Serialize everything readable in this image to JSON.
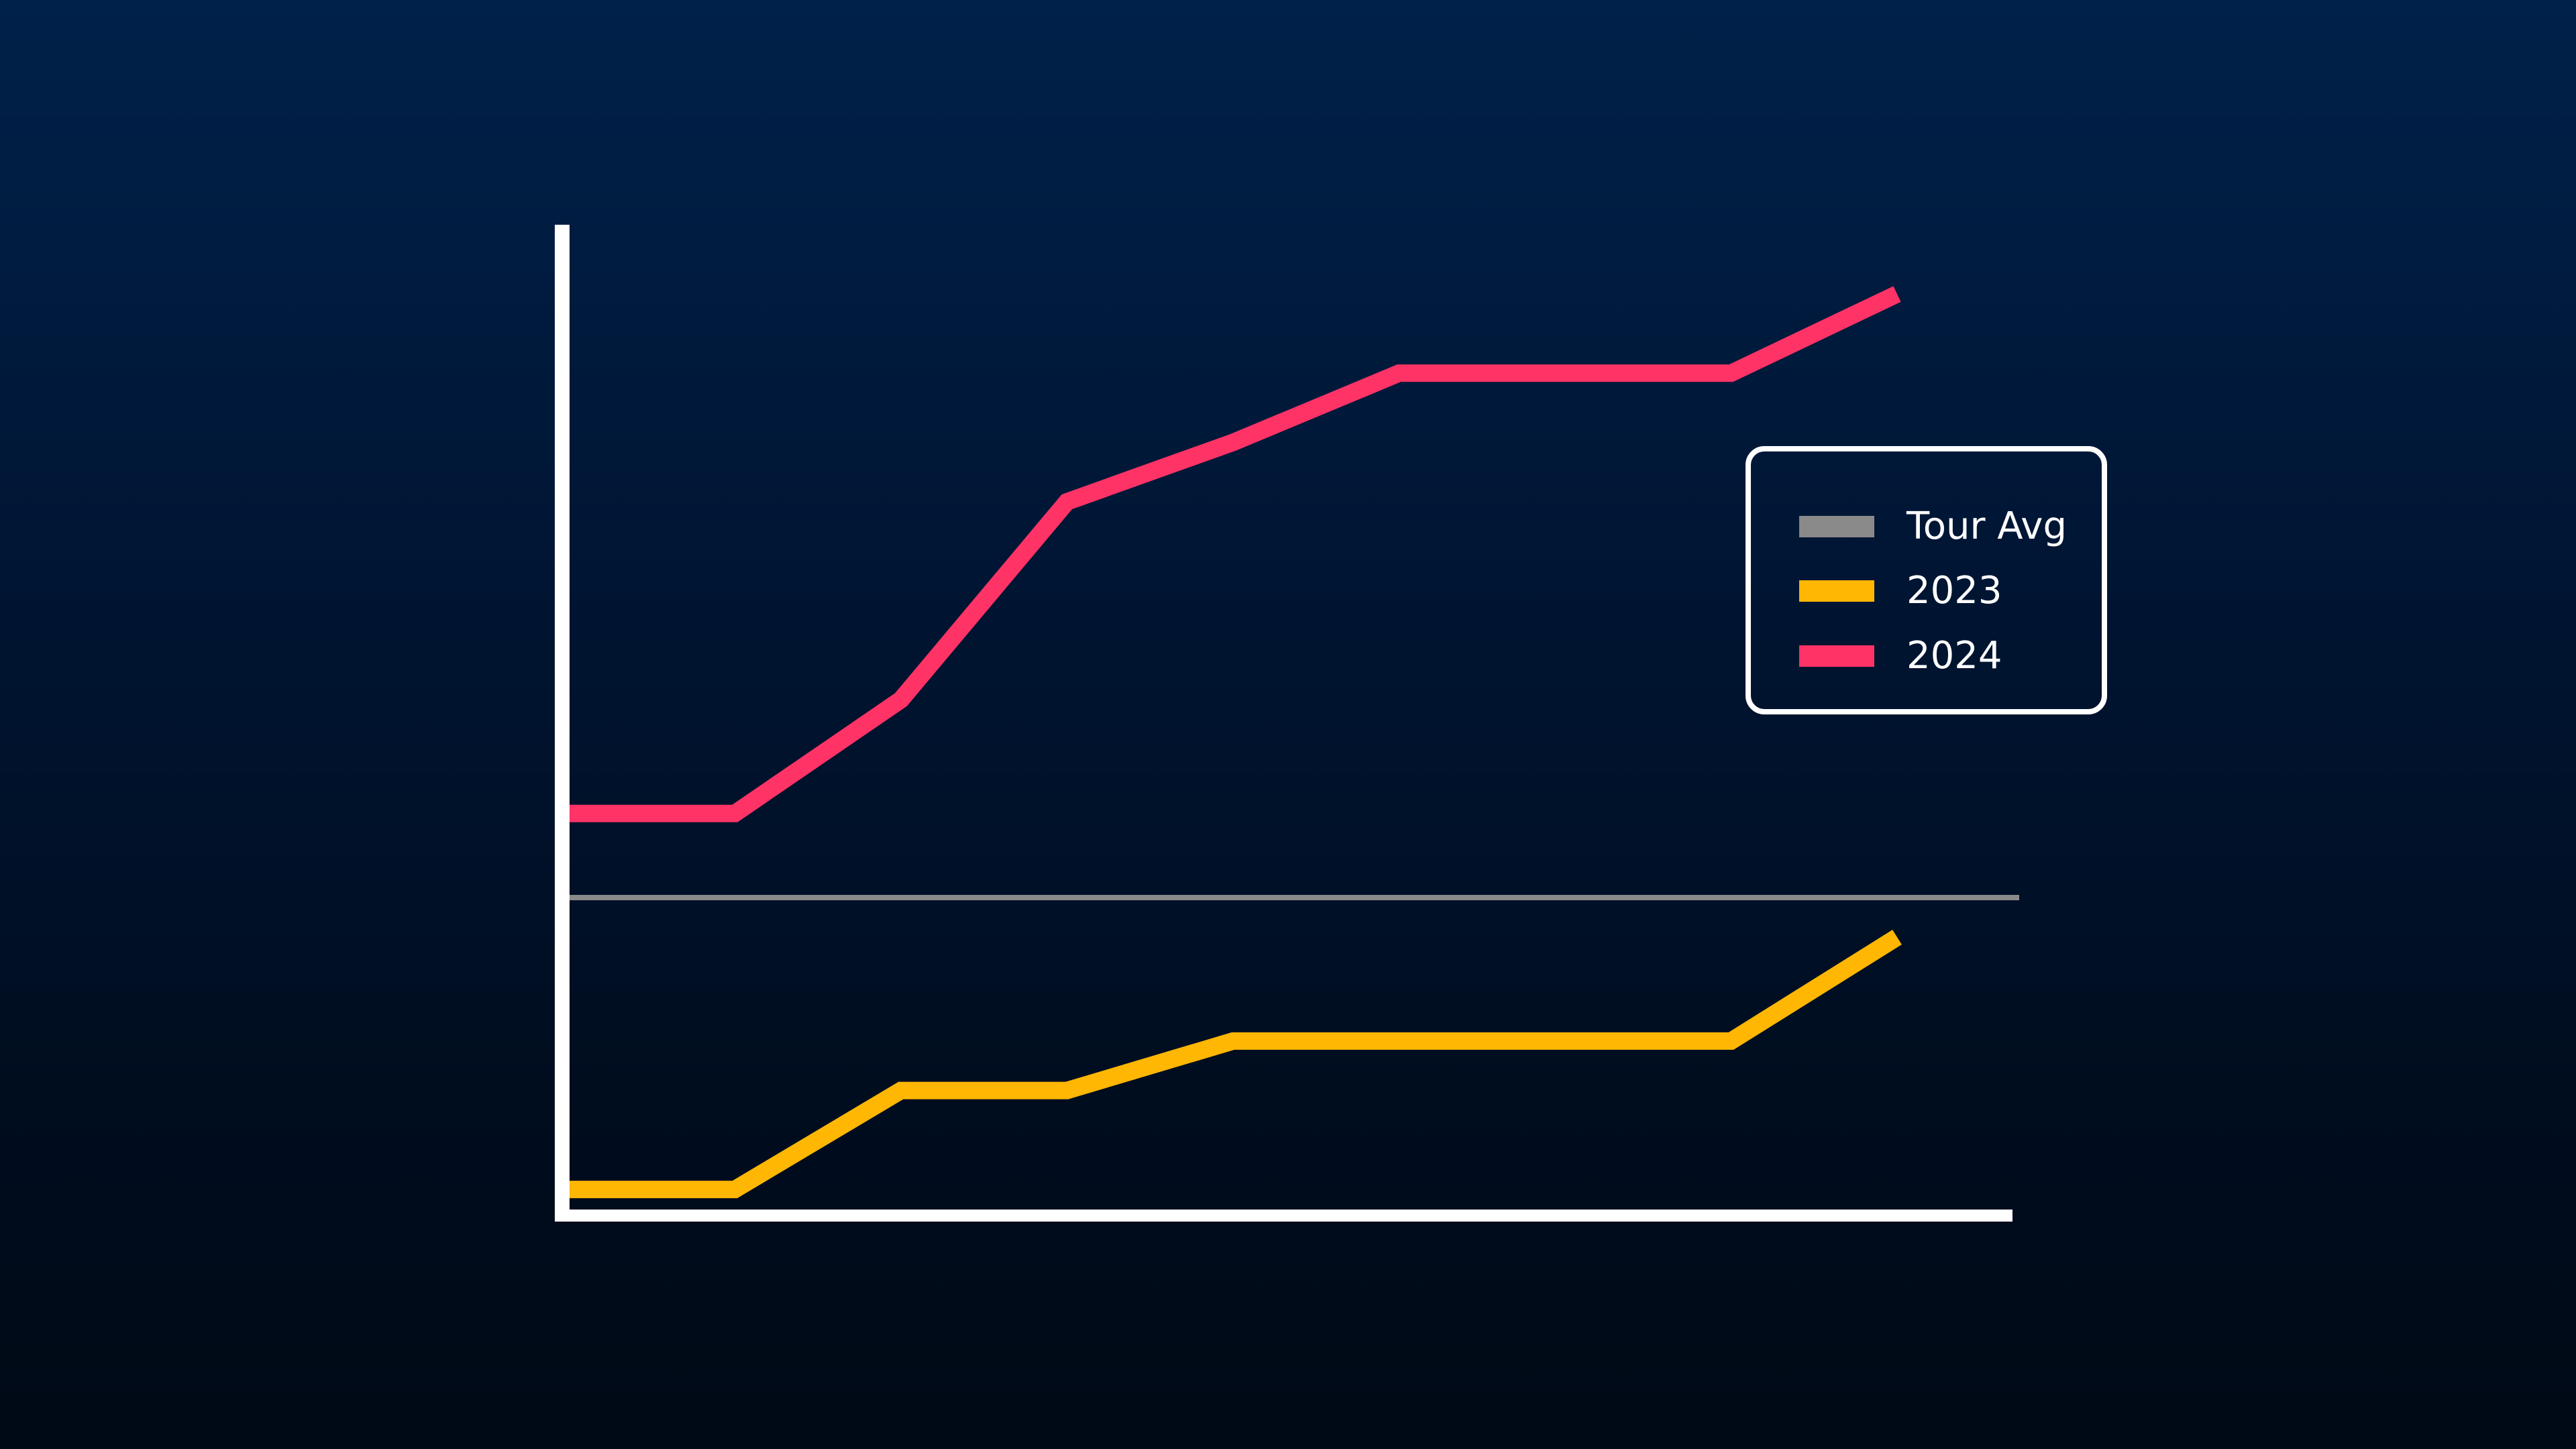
{
  "chart_data": {
    "type": "line",
    "title": "",
    "xlabel": "",
    "ylabel": "",
    "x": [
      1,
      2,
      3,
      4,
      5,
      6,
      7,
      8,
      9
    ],
    "xlim": [
      1,
      9
    ],
    "ylim": [
      0,
      100
    ],
    "grid": false,
    "axes": {
      "color": "#ffffff"
    },
    "legend": {
      "position": "right",
      "border_color": "#ffffff"
    },
    "reference_lines": [
      {
        "name": "Tour Avg",
        "value": 32,
        "color": "#8a8a8a"
      }
    ],
    "series": [
      {
        "name": "2023",
        "color": "#ffb703",
        "values": [
          2.5,
          2.5,
          12.5,
          12.5,
          17.5,
          17.5,
          17.5,
          17.5,
          28
        ]
      },
      {
        "name": "2024",
        "color": "#ff3366",
        "values": [
          40.5,
          40.5,
          52,
          72,
          78,
          85,
          85,
          85,
          93
        ]
      }
    ]
  }
}
